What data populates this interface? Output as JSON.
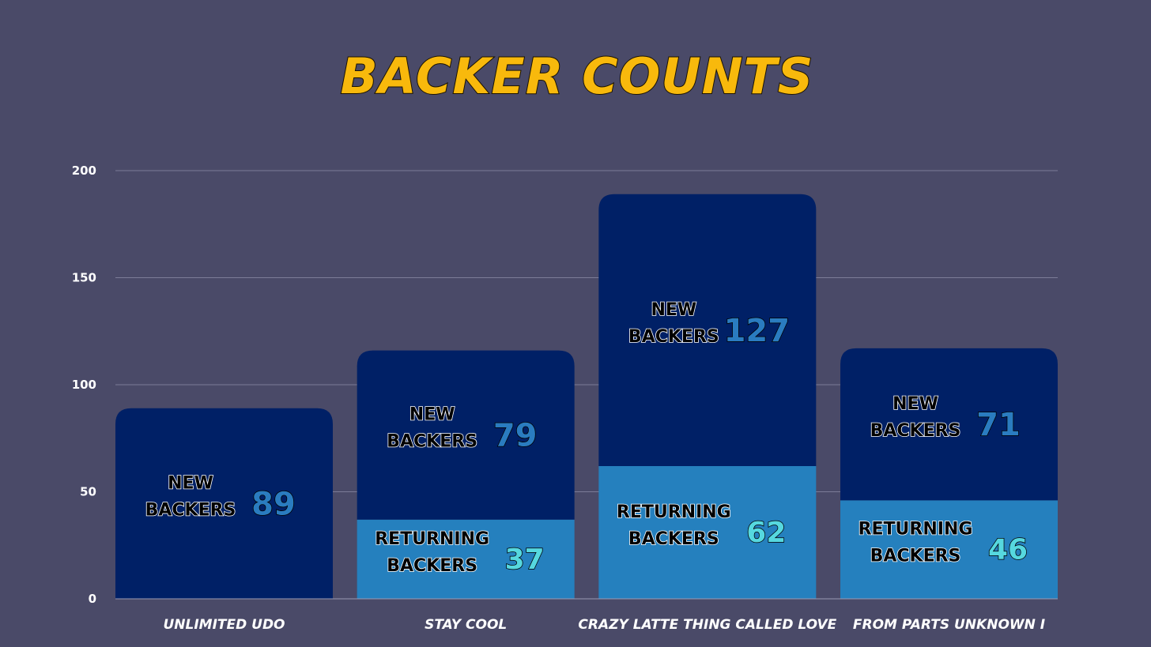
{
  "chart_data": {
    "type": "bar",
    "stacked": true,
    "title": "BACKER COUNTS",
    "categories": [
      "UNLIMITED UDO",
      "STAY COOL",
      "CRAZY LATTE THING CALLED LOVE",
      "FROM PARTS UNKNOWN I"
    ],
    "series": [
      {
        "name": "RETURNING BACKERS",
        "values": [
          0,
          37,
          62,
          46
        ],
        "color": "#2580be",
        "value_color": "#56d8df"
      },
      {
        "name": "NEW BACKERS",
        "values": [
          89,
          79,
          127,
          71
        ],
        "color": "#002066",
        "value_color": "#2a7cc0"
      }
    ],
    "ylim": [
      0,
      200
    ],
    "yticks": [
      0,
      50,
      100,
      150,
      200
    ],
    "grid": true,
    "background_color": "#4a4a68",
    "title_color": "#f8b90c"
  }
}
